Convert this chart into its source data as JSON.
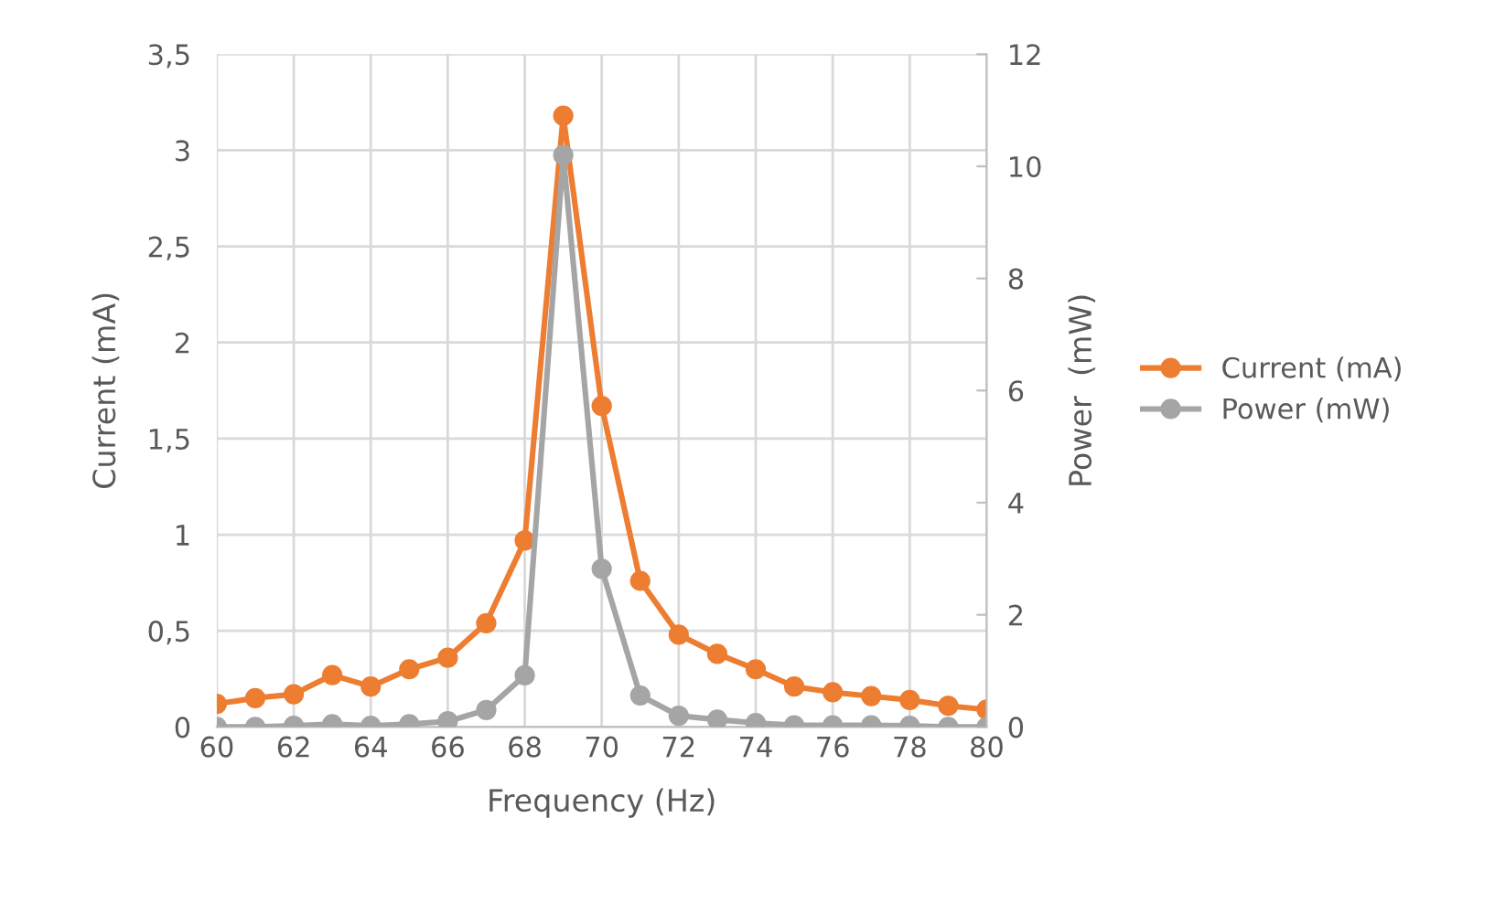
{
  "chart_data": {
    "type": "line",
    "xlabel": "Frequency (Hz)",
    "ylabel": "Current (mA)",
    "y2label": "Power  (mW)",
    "x": [
      60,
      61,
      62,
      63,
      64,
      65,
      66,
      67,
      68,
      69,
      70,
      71,
      72,
      73,
      74,
      75,
      76,
      77,
      78,
      79,
      80
    ],
    "series": [
      {
        "name": "Current (mA)",
        "color": "#ed7d31",
        "values": [
          0.12,
          0.15,
          0.17,
          0.27,
          0.21,
          0.3,
          0.36,
          0.54,
          0.97,
          3.18,
          1.67,
          0.76,
          0.48,
          0.38,
          0.3,
          0.21,
          0.18,
          0.16,
          0.14,
          0.11,
          0.09
        ]
      },
      {
        "name": "Power (mW)",
        "color": "#a5a5a5",
        "axis": "y2",
        "values": [
          0,
          0,
          0.02,
          0.05,
          0.02,
          0.05,
          0.1,
          0.3,
          0.92,
          10.2,
          2.82,
          0.56,
          0.2,
          0.13,
          0.07,
          0.03,
          0.03,
          0.03,
          0.02,
          0,
          0
        ]
      }
    ],
    "xlim": [
      60,
      80
    ],
    "xticks": [
      60,
      62,
      64,
      66,
      68,
      70,
      72,
      74,
      76,
      78,
      80
    ],
    "ylim": [
      0,
      3.5
    ],
    "yticks": [
      0,
      {
        "value": 0.5,
        "label": "0,5"
      },
      1,
      {
        "value": 1.5,
        "label": "1,5"
      },
      2,
      {
        "value": 2.5,
        "label": "2,5"
      },
      3,
      {
        "value": 3.5,
        "label": "3,5"
      }
    ],
    "y2lim": [
      0,
      12
    ],
    "y2ticks": [
      0,
      2,
      4,
      6,
      8,
      10,
      12
    ],
    "grid": true,
    "legend": "right",
    "marker": "circle",
    "line_style": "solid"
  }
}
